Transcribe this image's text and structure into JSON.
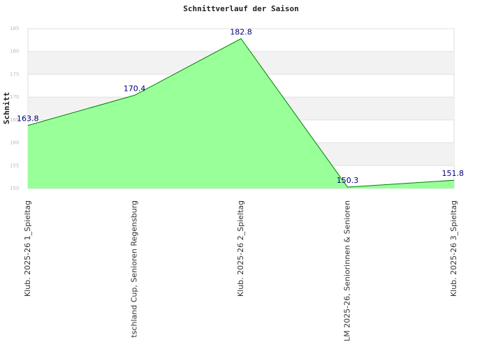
{
  "chart_data": {
    "type": "area",
    "title": "Schnittverlauf der Saison",
    "y_label": "Schnitt",
    "categories": [
      "Klub. 2025-26  1_Spieltag",
      "tschland Cup, Senioren Regensburg",
      "Klub. 2025-26  2_Spieltag",
      "LM 2025-26, Seniorinnen & Senioren",
      "Klub. 2025-26  3_Spieltag"
    ],
    "values": [
      163.8,
      170.4,
      182.8,
      150.3,
      151.8
    ],
    "color": "#99ff99",
    "line_color": "#008000",
    "label_color": "#000080",
    "ylim": [
      150,
      185
    ],
    "yticks": [
      150,
      155,
      160,
      165,
      170,
      175,
      180,
      185
    ],
    "grid": true
  }
}
